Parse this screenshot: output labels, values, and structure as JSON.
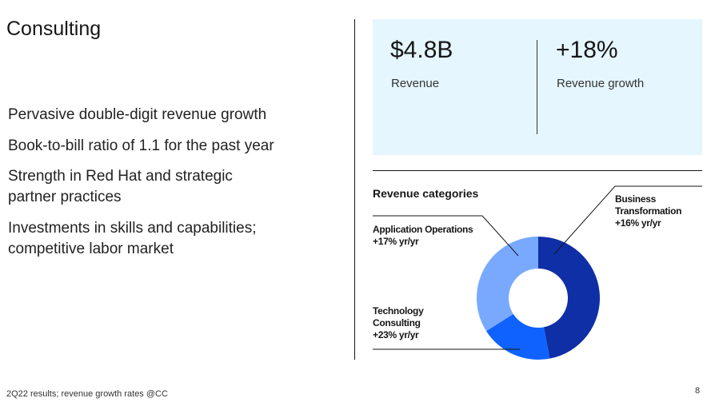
{
  "title": "Consulting",
  "bullets": [
    "Pervasive double-digit revenue growth",
    "Book-to-bill ratio of 1.1 for the past year",
    "Strength in Red Hat and strategic partner practices",
    "Investments in skills and capabilities; competitive labor market"
  ],
  "kpis": [
    {
      "value": "$4.8B",
      "label": "Revenue"
    },
    {
      "value": "+18%",
      "label": "Revenue growth"
    }
  ],
  "footnote": "2Q22 results; revenue growth rates @CC",
  "page_number": "8",
  "chart_data": {
    "type": "pie",
    "title": "Revenue categories",
    "donut": true,
    "categories": [
      "Business Transformation",
      "Technology Consulting",
      "Application Operations"
    ],
    "values": [
      47,
      19,
      34
    ],
    "colors": [
      "#0f2fa6",
      "#0f62fe",
      "#78a9ff"
    ],
    "labels": [
      {
        "name": "Business Transformation",
        "growth": "+16% yr/yr"
      },
      {
        "name": "Technology Consulting",
        "growth": "+23% yr/yr"
      },
      {
        "name": "Application Operations",
        "growth": "+17% yr/yr"
      }
    ]
  }
}
